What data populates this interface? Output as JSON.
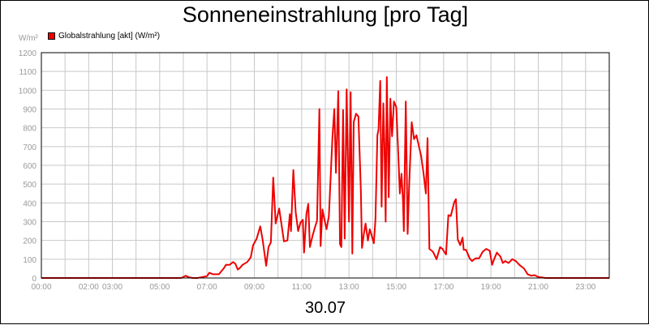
{
  "title": "Sonneneinstrahlung [pro Tag]",
  "date_label": "30.07",
  "colors": {
    "series": "#ee0000",
    "grid": "#c8c8c8",
    "tick_text": "#999999",
    "frame": "#000000"
  },
  "chart_data": {
    "type": "line",
    "title": "Sonneneinstrahlung [pro Tag]",
    "ylabel": "W/m²",
    "xlabel": "30.07",
    "ylim": [
      0,
      1200
    ],
    "xlim": [
      0,
      24
    ],
    "grid": true,
    "legend": "top-left",
    "yticks": [
      0,
      100,
      200,
      300,
      400,
      500,
      600,
      700,
      800,
      900,
      1000,
      1100,
      1200
    ],
    "xtick_labels": [
      {
        "x": 0,
        "label": "00:00"
      },
      {
        "x": 2,
        "label": "02:00"
      },
      {
        "x": 3,
        "label": "03:00"
      },
      {
        "x": 5,
        "label": "05:00"
      },
      {
        "x": 7,
        "label": "07:00"
      },
      {
        "x": 9,
        "label": "09:00"
      },
      {
        "x": 11,
        "label": "11:00"
      },
      {
        "x": 13,
        "label": "13:00"
      },
      {
        "x": 15,
        "label": "15:00"
      },
      {
        "x": 17,
        "label": "17:00"
      },
      {
        "x": 19,
        "label": "19:00"
      },
      {
        "x": 21,
        "label": "21:00"
      },
      {
        "x": 23,
        "label": "23:00"
      }
    ],
    "series": [
      {
        "name": "Globalstrahlung [akt] (W/m²)",
        "color": "#ee0000",
        "points": [
          [
            0.0,
            0
          ],
          [
            5.9,
            0
          ],
          [
            6.0,
            5
          ],
          [
            6.1,
            12
          ],
          [
            6.25,
            3
          ],
          [
            6.4,
            0
          ],
          [
            6.6,
            0
          ],
          [
            6.8,
            5
          ],
          [
            7.0,
            10
          ],
          [
            7.1,
            28
          ],
          [
            7.25,
            20
          ],
          [
            7.5,
            20
          ],
          [
            7.7,
            50
          ],
          [
            7.8,
            70
          ],
          [
            7.95,
            70
          ],
          [
            8.1,
            85
          ],
          [
            8.2,
            75
          ],
          [
            8.3,
            45
          ],
          [
            8.4,
            55
          ],
          [
            8.5,
            70
          ],
          [
            8.7,
            85
          ],
          [
            8.85,
            110
          ],
          [
            8.95,
            175
          ],
          [
            9.1,
            210
          ],
          [
            9.25,
            275
          ],
          [
            9.35,
            205
          ],
          [
            9.5,
            65
          ],
          [
            9.6,
            165
          ],
          [
            9.7,
            190
          ],
          [
            9.8,
            535
          ],
          [
            9.9,
            290
          ],
          [
            10.05,
            370
          ],
          [
            10.15,
            285
          ],
          [
            10.25,
            195
          ],
          [
            10.4,
            200
          ],
          [
            10.5,
            340
          ],
          [
            10.55,
            250
          ],
          [
            10.65,
            575
          ],
          [
            10.75,
            350
          ],
          [
            10.85,
            250
          ],
          [
            10.95,
            295
          ],
          [
            11.05,
            310
          ],
          [
            11.1,
            135
          ],
          [
            11.2,
            340
          ],
          [
            11.28,
            395
          ],
          [
            11.35,
            165
          ],
          [
            11.45,
            220
          ],
          [
            11.55,
            265
          ],
          [
            11.65,
            305
          ],
          [
            11.75,
            900
          ],
          [
            11.8,
            170
          ],
          [
            11.88,
            365
          ],
          [
            11.95,
            320
          ],
          [
            12.05,
            260
          ],
          [
            12.15,
            330
          ],
          [
            12.3,
            750
          ],
          [
            12.38,
            900
          ],
          [
            12.45,
            560
          ],
          [
            12.55,
            995
          ],
          [
            12.62,
            180
          ],
          [
            12.68,
            165
          ],
          [
            12.75,
            895
          ],
          [
            12.82,
            210
          ],
          [
            12.9,
            1005
          ],
          [
            13.0,
            300
          ],
          [
            13.07,
            990
          ],
          [
            13.14,
            130
          ],
          [
            13.2,
            830
          ],
          [
            13.3,
            875
          ],
          [
            13.4,
            860
          ],
          [
            13.5,
            470
          ],
          [
            13.55,
            160
          ],
          [
            13.63,
            235
          ],
          [
            13.7,
            290
          ],
          [
            13.8,
            200
          ],
          [
            13.88,
            260
          ],
          [
            13.95,
            230
          ],
          [
            14.05,
            185
          ],
          [
            14.12,
            310
          ],
          [
            14.2,
            760
          ],
          [
            14.25,
            790
          ],
          [
            14.32,
            1050
          ],
          [
            14.38,
            380
          ],
          [
            14.45,
            930
          ],
          [
            14.5,
            710
          ],
          [
            14.55,
            300
          ],
          [
            14.6,
            1070
          ],
          [
            14.68,
            430
          ],
          [
            14.75,
            955
          ],
          [
            14.82,
            755
          ],
          [
            14.9,
            940
          ],
          [
            15.0,
            910
          ],
          [
            15.1,
            610
          ],
          [
            15.15,
            450
          ],
          [
            15.22,
            555
          ],
          [
            15.28,
            415
          ],
          [
            15.32,
            250
          ],
          [
            15.4,
            940
          ],
          [
            15.48,
            235
          ],
          [
            15.55,
            510
          ],
          [
            15.65,
            830
          ],
          [
            15.75,
            740
          ],
          [
            15.85,
            760
          ],
          [
            15.95,
            705
          ],
          [
            16.05,
            650
          ],
          [
            16.15,
            560
          ],
          [
            16.25,
            450
          ],
          [
            16.32,
            745
          ],
          [
            16.4,
            155
          ],
          [
            16.55,
            140
          ],
          [
            16.7,
            100
          ],
          [
            16.85,
            165
          ],
          [
            16.95,
            155
          ],
          [
            17.1,
            125
          ],
          [
            17.2,
            335
          ],
          [
            17.3,
            330
          ],
          [
            17.45,
            405
          ],
          [
            17.52,
            420
          ],
          [
            17.6,
            205
          ],
          [
            17.7,
            175
          ],
          [
            17.8,
            215
          ],
          [
            17.85,
            150
          ],
          [
            17.95,
            150
          ],
          [
            18.1,
            105
          ],
          [
            18.2,
            90
          ],
          [
            18.35,
            105
          ],
          [
            18.5,
            105
          ],
          [
            18.65,
            140
          ],
          [
            18.8,
            155
          ],
          [
            18.95,
            145
          ],
          [
            19.05,
            70
          ],
          [
            19.15,
            105
          ],
          [
            19.25,
            135
          ],
          [
            19.4,
            115
          ],
          [
            19.5,
            80
          ],
          [
            19.6,
            90
          ],
          [
            19.75,
            80
          ],
          [
            19.9,
            100
          ],
          [
            20.05,
            90
          ],
          [
            20.2,
            70
          ],
          [
            20.4,
            50
          ],
          [
            20.55,
            20
          ],
          [
            20.7,
            12
          ],
          [
            20.85,
            15
          ],
          [
            21.0,
            5
          ],
          [
            21.15,
            3
          ],
          [
            21.3,
            0
          ],
          [
            24.0,
            0
          ]
        ]
      }
    ]
  }
}
